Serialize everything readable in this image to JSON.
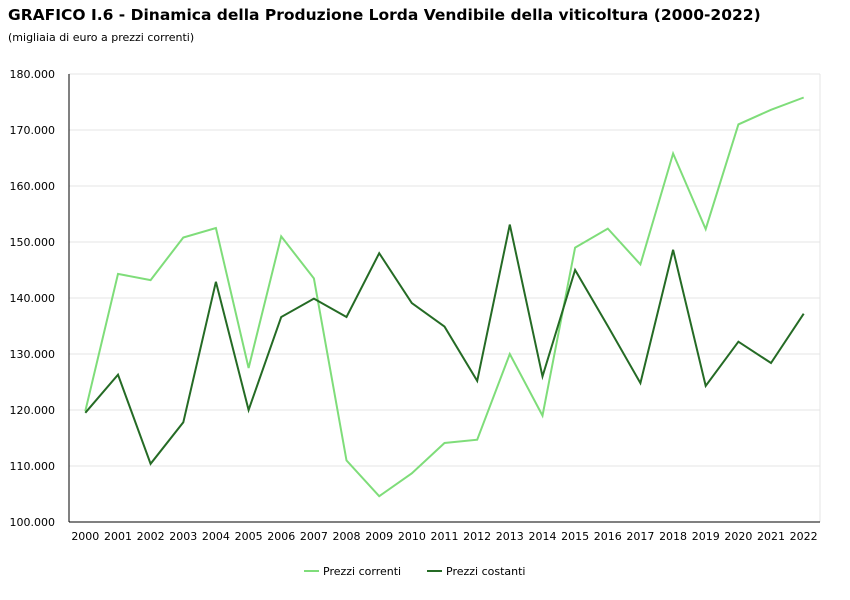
{
  "chart_data": {
    "type": "line",
    "title": "GRAFICO I.6 - Dinamica della Produzione Lorda Vendibile della viticoltura (2000-2022)",
    "subtitle": "(migliaia di euro a prezzi correnti)",
    "x": [
      "2000",
      "2001",
      "2002",
      "2003",
      "2004",
      "2005",
      "2006",
      "2007",
      "2008",
      "2009",
      "2010",
      "2011",
      "2012",
      "2013",
      "2014",
      "2015",
      "2016",
      "2017",
      "2018",
      "2019",
      "2020",
      "2021",
      "2022"
    ],
    "ylim": [
      100000,
      180000
    ],
    "yticks": [
      100000,
      110000,
      120000,
      130000,
      140000,
      150000,
      160000,
      170000,
      180000
    ],
    "ytick_labels": [
      "100.000",
      "110.000",
      "120.000",
      "130.000",
      "140.000",
      "150.000",
      "160.000",
      "170.000",
      "180.000"
    ],
    "grid": true,
    "legend_position": "bottom",
    "series": [
      {
        "name": "Prezzi correnti",
        "color": "#7fdd7a",
        "values": [
          119800,
          144300,
          143200,
          150800,
          152500,
          127500,
          151000,
          143500,
          111000,
          104600,
          108700,
          114100,
          114700,
          130000,
          119000,
          149000,
          152400,
          146000,
          165800,
          152300,
          171000,
          173600,
          175800
        ]
      },
      {
        "name": "Prezzi costanti",
        "color": "#256b25",
        "values": [
          119500,
          126300,
          110400,
          117800,
          142900,
          120000,
          136600,
          139900,
          136600,
          148000,
          139100,
          134900,
          125200,
          153100,
          126000,
          145000,
          135000,
          124800,
          148600,
          124300,
          132200,
          128400,
          137200
        ]
      }
    ]
  }
}
